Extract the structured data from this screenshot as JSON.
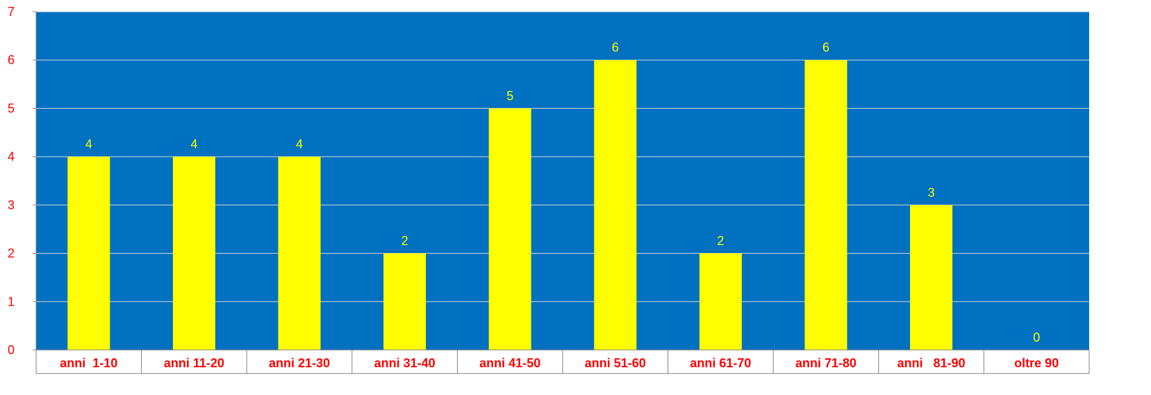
{
  "chart_data": {
    "type": "bar",
    "title": "",
    "xlabel": "",
    "ylabel": "",
    "categories": [
      "anni  1-10",
      "anni 11-20",
      "anni 21-30",
      "anni 31-40",
      "anni 41-50",
      "anni 51-60",
      "anni 61-70",
      "anni 71-80",
      "anni   81-90",
      "oltre 90"
    ],
    "values": [
      4,
      4,
      4,
      2,
      5,
      6,
      2,
      6,
      3,
      0
    ],
    "data_labels": [
      "4",
      "4",
      "4",
      "2",
      "5",
      "6",
      "2",
      "6",
      "3",
      "0"
    ],
    "ylim": [
      0,
      7
    ],
    "yticks": [
      "0",
      "1",
      "2",
      "3",
      "4",
      "5",
      "6",
      "7"
    ],
    "grid": true,
    "legend": "none",
    "colors": {
      "plot_background": "#0070c0",
      "bar": "#ffff00",
      "data_label": "#ffff00",
      "tick_label": "#ff0000",
      "gridline": "#d9d9d9",
      "axis_line": "#7f7f7f"
    }
  }
}
